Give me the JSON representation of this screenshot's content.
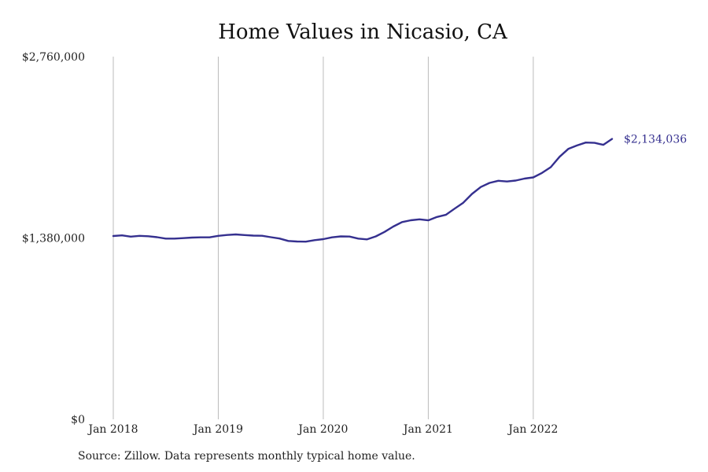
{
  "chart_data": {
    "type": "line",
    "title": "Home Values in Nicasio, CA",
    "xlabel": "",
    "ylabel": "",
    "x_ticks": [
      "Jan 2018",
      "Jan 2019",
      "Jan 2020",
      "Jan 2021",
      "Jan 2022"
    ],
    "y_ticks": [
      "$0",
      "$1,380,000",
      "$2,760,000"
    ],
    "ylim": [
      0,
      2760000
    ],
    "grid": "vertical",
    "legend": "none",
    "line_color": "#35308f",
    "series": [
      {
        "x": [
          "2018-01",
          "2018-02",
          "2018-03",
          "2018-04",
          "2018-05",
          "2018-06",
          "2018-07",
          "2018-08",
          "2018-09",
          "2018-10",
          "2018-11",
          "2018-12",
          "2019-01",
          "2019-02",
          "2019-03",
          "2019-04",
          "2019-05",
          "2019-06",
          "2019-07",
          "2019-08",
          "2019-09",
          "2019-10",
          "2019-11",
          "2019-12",
          "2020-01",
          "2020-02",
          "2020-03",
          "2020-04",
          "2020-05",
          "2020-06",
          "2020-07",
          "2020-08",
          "2020-09",
          "2020-10",
          "2020-11",
          "2020-12",
          "2021-01",
          "2021-02",
          "2021-03",
          "2021-04",
          "2021-05",
          "2021-06",
          "2021-07",
          "2021-08",
          "2021-09",
          "2021-10",
          "2021-11",
          "2021-12",
          "2022-01",
          "2022-02",
          "2022-03",
          "2022-04",
          "2022-05",
          "2022-06",
          "2022-07",
          "2022-08",
          "2022-09",
          "2022-10"
        ],
        "values": [
          1395000,
          1400000,
          1390000,
          1396000,
          1393000,
          1386000,
          1375000,
          1375000,
          1379000,
          1383000,
          1385000,
          1385000,
          1396000,
          1403000,
          1407000,
          1402000,
          1398000,
          1397000,
          1386000,
          1376000,
          1357000,
          1353000,
          1352000,
          1363000,
          1371000,
          1385000,
          1392000,
          1391000,
          1375000,
          1369000,
          1392000,
          1426000,
          1467000,
          1501000,
          1515000,
          1522000,
          1514000,
          1540000,
          1556000,
          1603000,
          1648000,
          1715000,
          1768000,
          1799000,
          1815000,
          1810000,
          1817000,
          1832000,
          1841000,
          1875000,
          1919000,
          1998000,
          2058000,
          2084000,
          2106000,
          2104000,
          2089000,
          2134036
        ]
      }
    ],
    "end_label": "$2,134,036"
  },
  "source_note": "Source: Zillow. Data represents monthly typical home value."
}
